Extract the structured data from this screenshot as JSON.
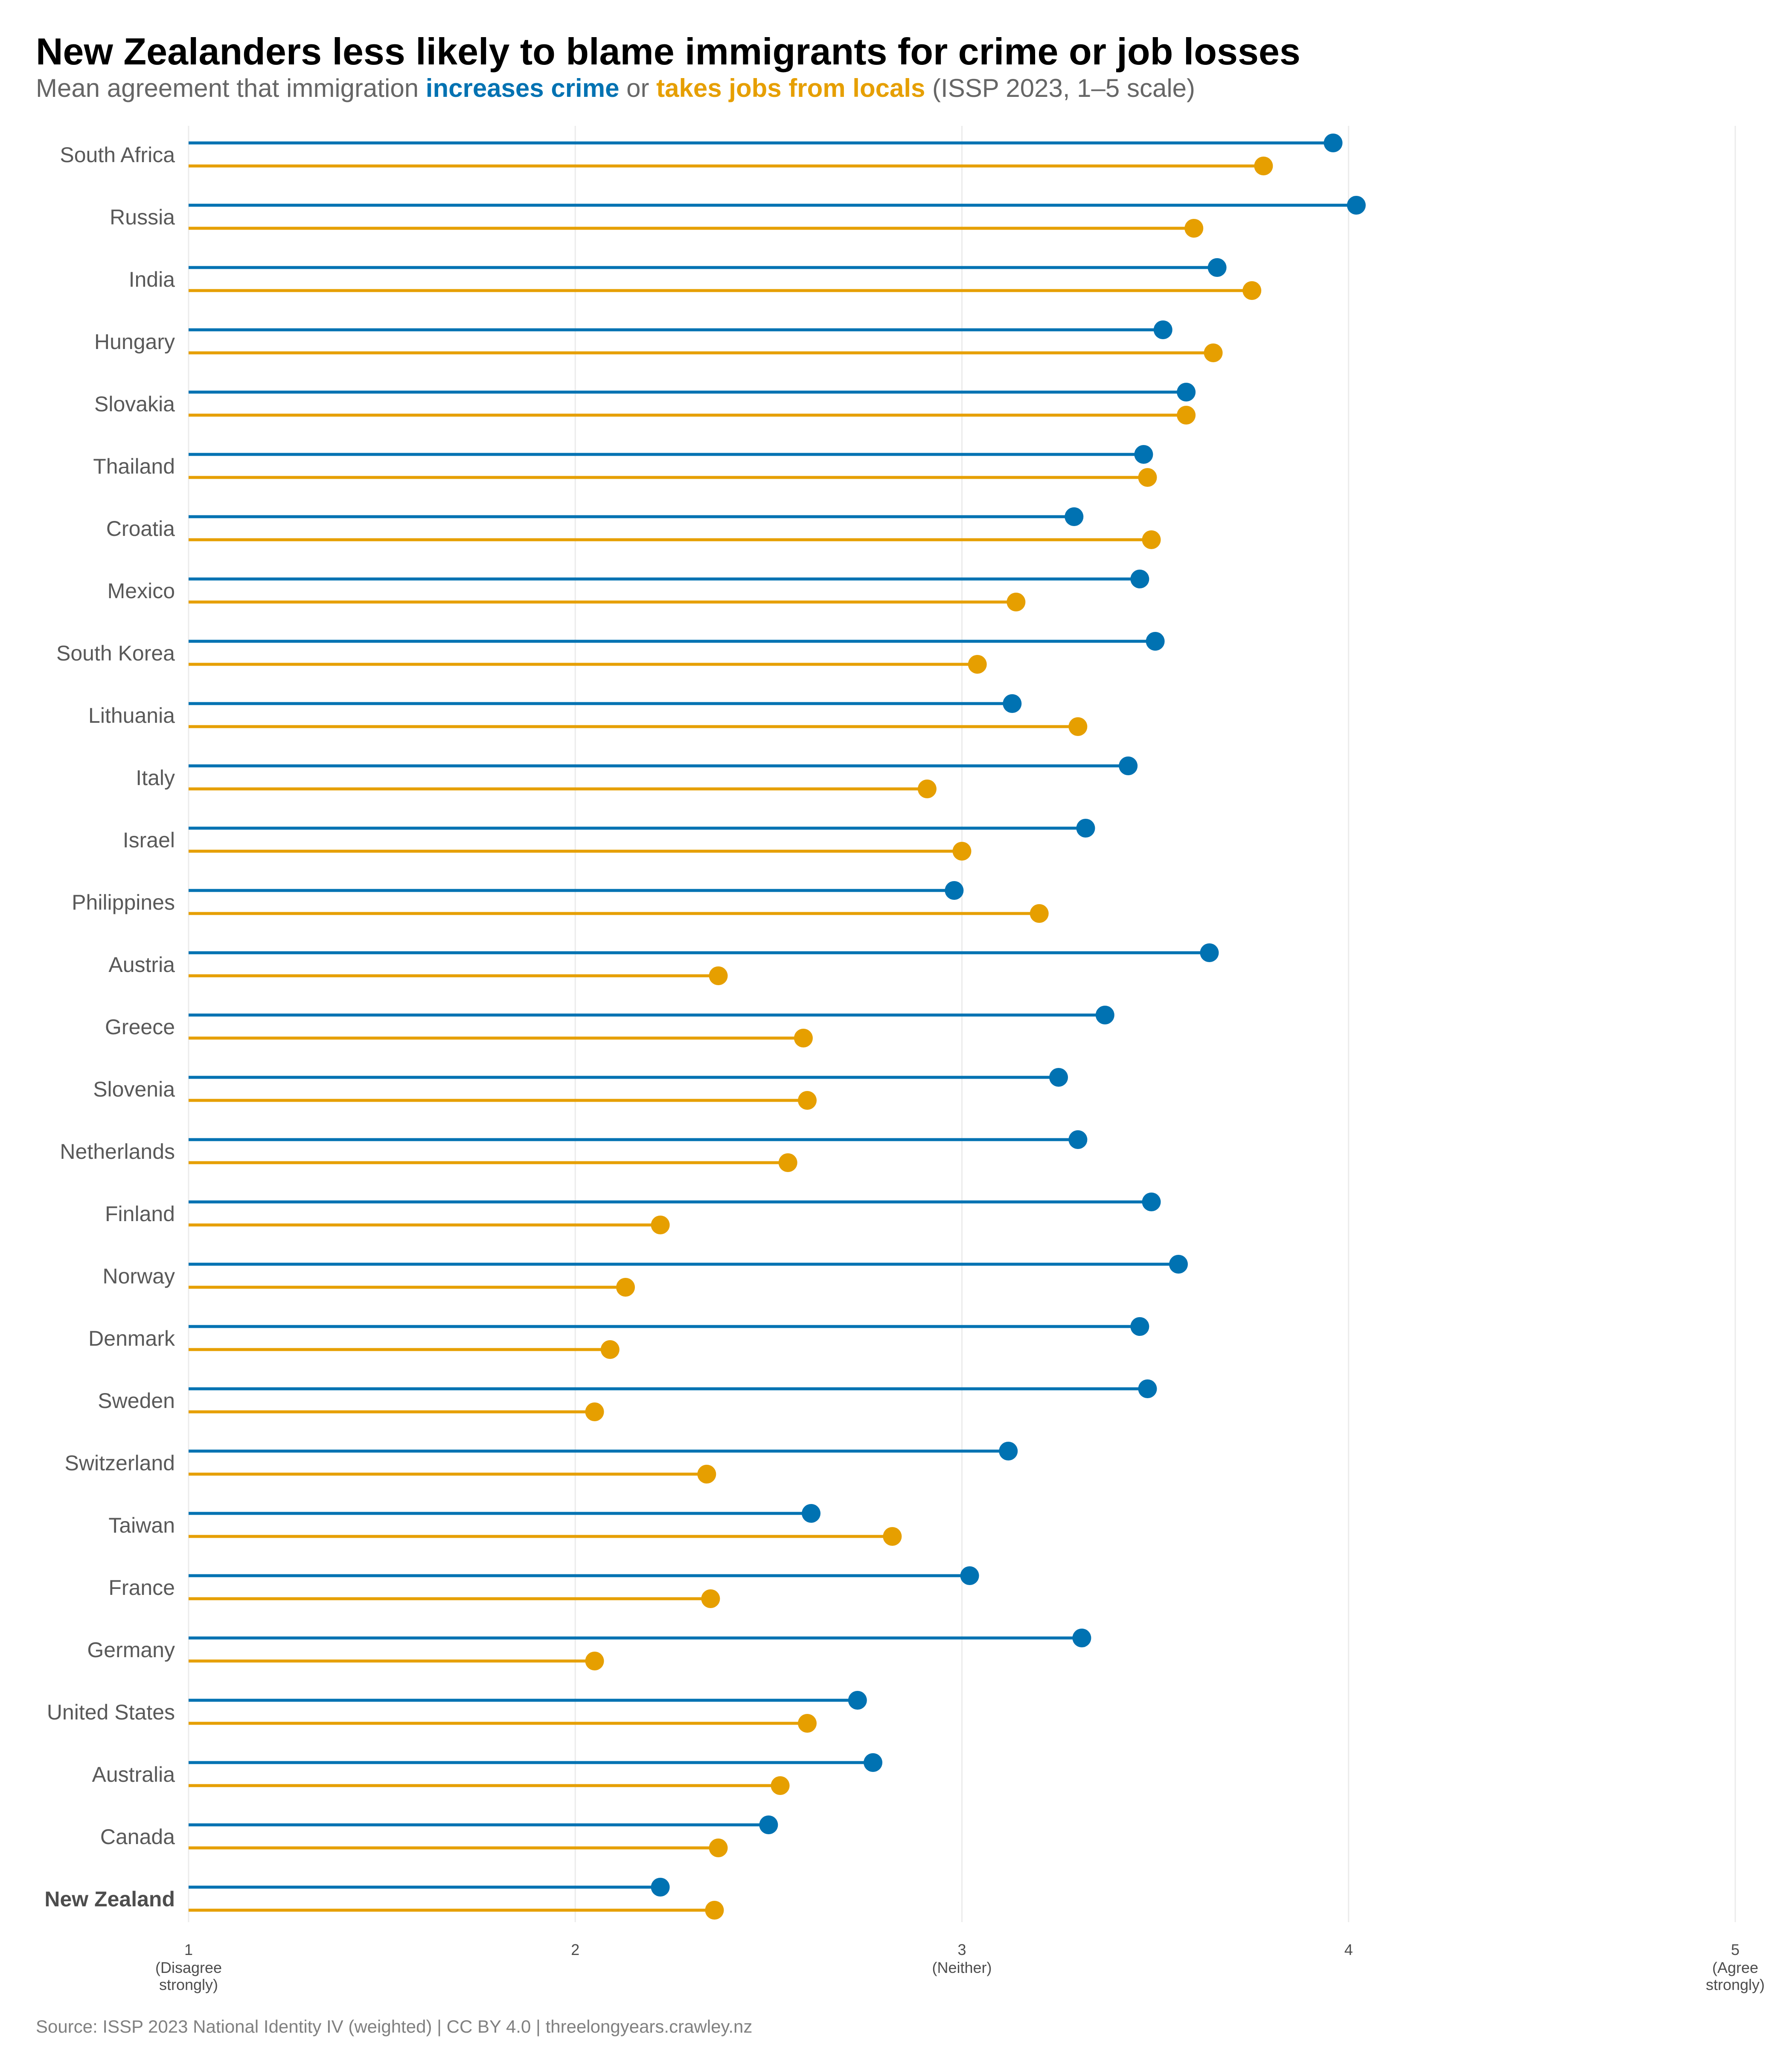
{
  "chart_data": {
    "type": "dumbbell",
    "title": "New Zealanders less likely to blame immigrants for crime or job losses",
    "subtitle": {
      "prefix": "Mean agreement that immigration ",
      "series1_label": "increases crime",
      "middle": " or ",
      "series2_label": "takes jobs from locals",
      "suffix": " (ISSP 2023, 1–5 scale)"
    },
    "xlim": [
      1,
      5
    ],
    "x_ticks": [
      {
        "value": 1,
        "label": "1",
        "sublabel": [
          "(Disagree",
          "strongly)"
        ]
      },
      {
        "value": 2,
        "label": "2",
        "sublabel": []
      },
      {
        "value": 3,
        "label": "3",
        "sublabel": [
          "(Neither)"
        ]
      },
      {
        "value": 4,
        "label": "4",
        "sublabel": []
      },
      {
        "value": 5,
        "label": "5",
        "sublabel": [
          "(Agree",
          "strongly)"
        ]
      }
    ],
    "grid": "vertical",
    "legend": "subtitle",
    "highlight_category": "New Zealand",
    "categories": [
      "South Africa",
      "Russia",
      "India",
      "Hungary",
      "Slovakia",
      "Thailand",
      "Croatia",
      "Mexico",
      "South Korea",
      "Lithuania",
      "Italy",
      "Israel",
      "Philippines",
      "Austria",
      "Greece",
      "Slovenia",
      "Netherlands",
      "Finland",
      "Norway",
      "Denmark",
      "Sweden",
      "Switzerland",
      "Taiwan",
      "France",
      "Germany",
      "United States",
      "Australia",
      "Canada",
      "New Zealand"
    ],
    "series": [
      {
        "name": "increases crime",
        "color": "#0072B2",
        "values": [
          3.96,
          4.02,
          3.66,
          3.52,
          3.58,
          3.47,
          3.29,
          3.46,
          3.5,
          3.13,
          3.43,
          3.32,
          2.98,
          3.64,
          3.37,
          3.25,
          3.3,
          3.49,
          3.56,
          3.46,
          3.48,
          3.12,
          2.61,
          3.02,
          3.31,
          2.73,
          2.77,
          2.5,
          2.22
        ]
      },
      {
        "name": "takes jobs from locals",
        "color": "#E69F00",
        "values": [
          3.78,
          3.6,
          3.75,
          3.65,
          3.58,
          3.48,
          3.49,
          3.14,
          3.04,
          3.3,
          2.91,
          3.0,
          3.2,
          2.37,
          2.59,
          2.6,
          2.55,
          2.22,
          2.13,
          2.09,
          2.05,
          2.34,
          2.82,
          2.35,
          2.05,
          2.6,
          2.53,
          2.37,
          2.36
        ]
      }
    ]
  },
  "source": "Source: ISSP 2023 National Identity IV (weighted) | CC BY 4.0 | threelongyears.crawley.nz"
}
